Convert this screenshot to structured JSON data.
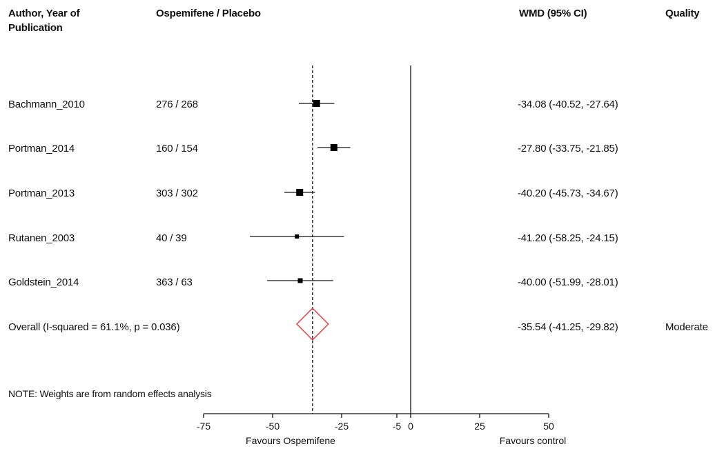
{
  "headers": {
    "author": "Author, Year of Publication",
    "n_ratio": "Ospemifene / Placebo",
    "wmd": "WMD (95% CI)",
    "quality": "Quality"
  },
  "note": "NOTE: Weights are from random effects analysis",
  "chart_data": {
    "type": "forest",
    "effect_measure": "WMD (95% CI)",
    "xlim": [
      -75,
      50
    ],
    "xticks": [
      -75,
      -50,
      -25,
      -5,
      0,
      25,
      50
    ],
    "xtick_labels": [
      "-75",
      "-50",
      "-25",
      "-5",
      "0",
      "25",
      "50"
    ],
    "null_line": 0,
    "pooled_line": -35.54,
    "favours_left": "Favours Ospemifene",
    "favours_right": "Favours control",
    "studies": [
      {
        "study": "Bachmann_2010",
        "n": "276 / 268",
        "wmd": -34.08,
        "lower": -40.52,
        "upper": -27.64,
        "ci_text": "-34.08 (-40.52, -27.64)",
        "weight_size": 10
      },
      {
        "study": "Portman_2014",
        "n": "160 / 154",
        "wmd": -27.8,
        "lower": -33.75,
        "upper": -21.85,
        "ci_text": "-27.80 (-33.75, -21.85)",
        "weight_size": 10
      },
      {
        "study": "Portman_2013",
        "n": "303 / 302",
        "wmd": -40.2,
        "lower": -45.73,
        "upper": -34.67,
        "ci_text": "-40.20 (-45.73, -34.67)",
        "weight_size": 10
      },
      {
        "study": "Rutanen_2003",
        "n": "40 / 39",
        "wmd": -41.2,
        "lower": -58.25,
        "upper": -24.15,
        "ci_text": "-41.20 (-58.25, -24.15)",
        "weight_size": 6
      },
      {
        "study": "Goldstein_2014",
        "n": "363 / 63",
        "wmd": -40.0,
        "lower": -51.99,
        "upper": -28.01,
        "ci_text": "-40.00 (-51.99, -28.01)",
        "weight_size": 7
      }
    ],
    "overall": {
      "label": "Overall (I-squared = 61.1%, p = 0.036)",
      "wmd": -35.54,
      "lower": -41.25,
      "upper": -29.82,
      "ci_text": "-35.54 (-41.25, -29.82)",
      "quality": "Moderate",
      "color": "#e0393e"
    }
  }
}
